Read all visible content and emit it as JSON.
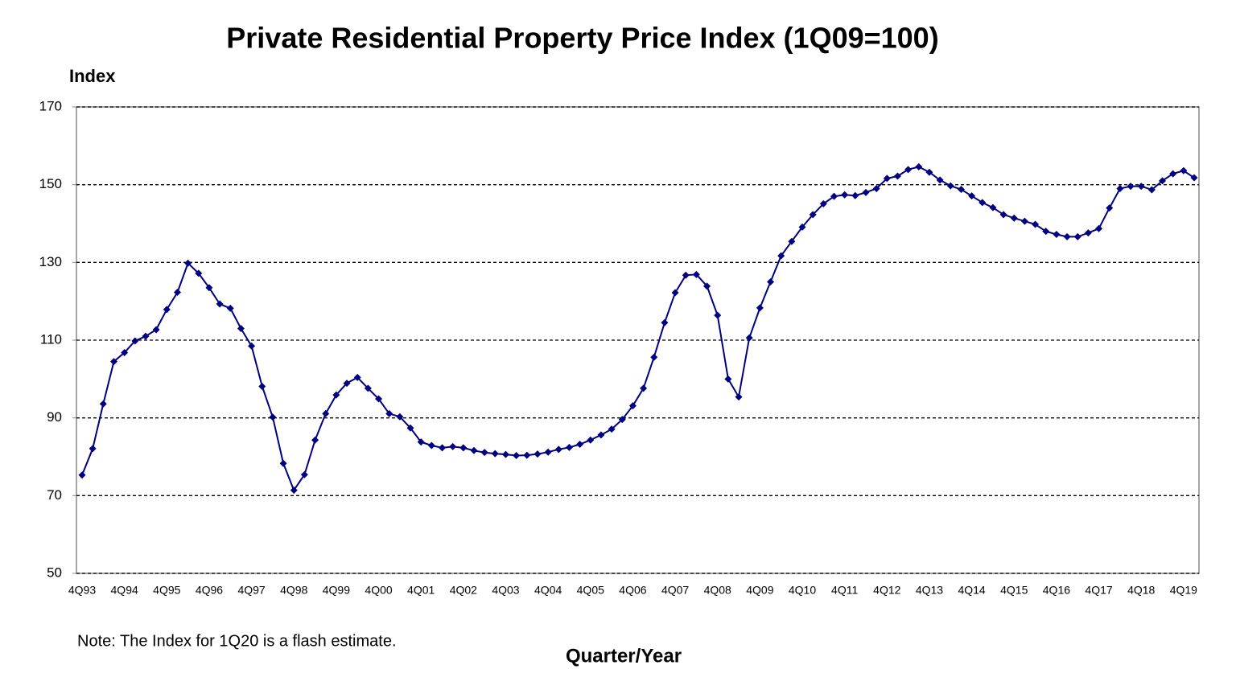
{
  "chart_data": {
    "type": "line",
    "title": "Private Residential Property Price Index (1Q09=100)",
    "y_label": "Index",
    "x_label": "Quarter/Year",
    "note": "Note: The Index for 1Q20 is a flash estimate.",
    "categories": [
      "4Q93",
      null,
      null,
      null,
      "4Q94",
      null,
      null,
      null,
      "4Q95",
      null,
      null,
      null,
      "4Q96",
      null,
      null,
      null,
      "4Q97",
      null,
      null,
      null,
      "4Q98",
      null,
      null,
      null,
      "4Q99",
      null,
      null,
      null,
      "4Q00",
      null,
      null,
      null,
      "4Q01",
      null,
      null,
      null,
      "4Q02",
      null,
      null,
      null,
      "4Q03",
      null,
      null,
      null,
      "4Q04",
      null,
      null,
      null,
      "4Q05",
      null,
      null,
      null,
      "4Q06",
      null,
      null,
      null,
      "4Q07",
      null,
      null,
      null,
      "4Q08",
      null,
      null,
      null,
      "4Q09",
      null,
      null,
      null,
      "4Q10",
      null,
      null,
      null,
      "4Q11",
      null,
      null,
      null,
      "4Q12",
      null,
      null,
      null,
      "4Q13",
      null,
      null,
      null,
      "4Q14",
      null,
      null,
      null,
      "4Q15",
      null,
      null,
      null,
      "4Q16",
      null,
      null,
      null,
      "4Q17",
      null,
      null,
      null,
      "4Q18",
      null,
      null,
      null,
      "4Q19",
      null
    ],
    "series": [
      {
        "name": "Index",
        "color": "#000080",
        "values": [
          75.3,
          82.1,
          93.6,
          104.5,
          106.8,
          109.8,
          111.0,
          112.7,
          117.9,
          122.3,
          129.8,
          127.2,
          123.5,
          119.3,
          118.2,
          113.0,
          108.5,
          98.1,
          90.2,
          78.3,
          71.4,
          75.4,
          84.3,
          91.1,
          95.9,
          98.9,
          100.4,
          97.6,
          94.9,
          91.1,
          90.3,
          87.4,
          83.8,
          82.9,
          82.3,
          82.6,
          82.3,
          81.6,
          81.1,
          80.8,
          80.6,
          80.3,
          80.4,
          80.7,
          81.2,
          81.9,
          82.4,
          83.2,
          84.3,
          85.6,
          87.1,
          89.6,
          93.1,
          97.6,
          105.6,
          114.5,
          122.2,
          126.7,
          126.9,
          123.9,
          116.4,
          100.0,
          95.4,
          110.6,
          118.3,
          125.0,
          131.7,
          135.4,
          139.1,
          142.3,
          145.1,
          147.0,
          147.4,
          147.2,
          148.0,
          149.0,
          151.6,
          152.2,
          153.9,
          154.6,
          153.2,
          151.2,
          149.7,
          148.8,
          147.1,
          145.4,
          144.1,
          142.3,
          141.4,
          140.6,
          139.8,
          138.0,
          137.2,
          136.6,
          136.6,
          137.6,
          138.7,
          144.0,
          149.0,
          149.6,
          149.6,
          148.7,
          151.0,
          152.8,
          153.6,
          151.8
        ]
      }
    ],
    "ylim": [
      50,
      170
    ],
    "yticks": [
      50,
      70,
      90,
      110,
      130,
      150,
      170
    ],
    "grid": true
  }
}
